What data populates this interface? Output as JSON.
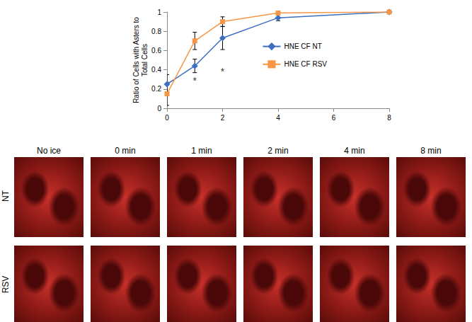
{
  "chart_data": {
    "type": "line",
    "ylabel": [
      "Ratio of Cells with Asters to",
      "Total Cells"
    ],
    "x": [
      0,
      1,
      2,
      4,
      8
    ],
    "series": [
      {
        "name": "HNE CF NT",
        "color": "#3c6fc0",
        "marker": "diamond",
        "values": [
          0.25,
          0.44,
          0.73,
          0.94,
          1.0
        ],
        "errors": [
          0.1,
          0.07,
          0.12,
          0.03,
          0.0
        ]
      },
      {
        "name": "HNE CF RSV",
        "color": "#f79646",
        "marker": "square",
        "values": [
          0.15,
          0.7,
          0.9,
          0.99,
          1.0
        ],
        "errors": [
          0.12,
          0.09,
          0.05,
          0.01,
          0.0
        ]
      }
    ],
    "annotations": [
      {
        "text": "*",
        "x": 1,
        "y": 0.29
      },
      {
        "text": "*",
        "x": 2,
        "y": 0.38
      }
    ],
    "xlim": [
      0,
      8
    ],
    "xticks": [
      0,
      2,
      4,
      6,
      8
    ],
    "ylim": [
      0,
      1
    ],
    "yticks": [
      0,
      0.2,
      0.4,
      0.6,
      0.8,
      1
    ],
    "grid": false,
    "legend": "right"
  },
  "image_grid": {
    "columns": [
      "No ice",
      "0 min",
      "1 min",
      "2 min",
      "4 min",
      "8 min"
    ],
    "rows": [
      "NT",
      "RSV"
    ]
  }
}
